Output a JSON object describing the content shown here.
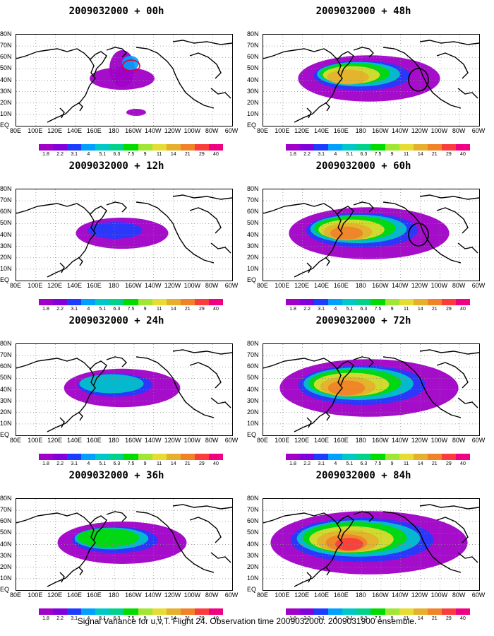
{
  "panels": [
    {
      "title": "2009032000 + 00h",
      "intensity": 0.2,
      "circle": "red"
    },
    {
      "title": "2009032000 + 48h",
      "intensity": 0.62,
      "circle": "black"
    },
    {
      "title": "2009032000 + 12h",
      "intensity": 0.35,
      "circle": "none"
    },
    {
      "title": "2009032000 + 60h",
      "intensity": 0.72,
      "circle": "black"
    },
    {
      "title": "2009032000 + 24h",
      "intensity": 0.48,
      "circle": "none"
    },
    {
      "title": "2009032000 + 72h",
      "intensity": 0.82,
      "circle": "none"
    },
    {
      "title": "2009032000 + 36h",
      "intensity": 0.55,
      "circle": "none"
    },
    {
      "title": "2009032000 + 84h",
      "intensity": 0.92,
      "circle": "none"
    }
  ],
  "lat_labels": [
    "80N",
    "70N",
    "60N",
    "50N",
    "40N",
    "30N",
    "20N",
    "10N",
    "EQ"
  ],
  "lon_labels": [
    "80E",
    "100E",
    "120E",
    "140E",
    "160E",
    "180",
    "160W",
    "140W",
    "120W",
    "100W",
    "80W",
    "60W"
  ],
  "colorbar": {
    "labels": [
      "1.8",
      "2.2",
      "3.1",
      "4",
      "5.1",
      "6.3",
      "7.5",
      "9",
      "11",
      "14",
      "21",
      "29",
      "40"
    ],
    "colors": [
      "#a000c8",
      "#8200dc",
      "#1e3cff",
      "#00a0ff",
      "#00c8c8",
      "#00d28c",
      "#00dc00",
      "#a0e632",
      "#e6dc32",
      "#e6af2d",
      "#f08228",
      "#fa3c3c",
      "#f00082"
    ]
  },
  "caption": "Signal Variance for u,v,T. Flight 24. Observation time 2009032000. 2009031900 ensemble."
}
